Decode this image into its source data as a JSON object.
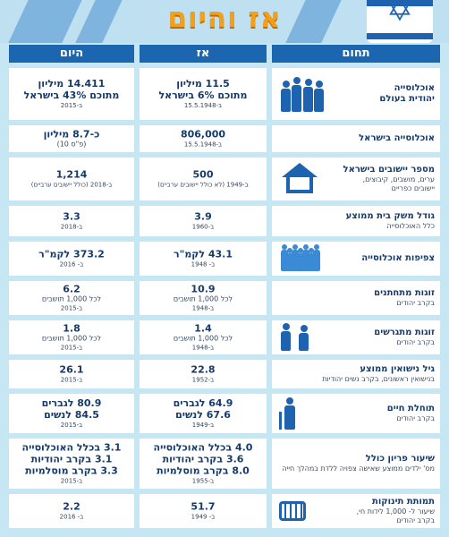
{
  "title": "אז והיום",
  "headers": {
    "field": "תחום",
    "then": "אז",
    "now": "היום"
  },
  "icons": {
    "flag": "star-of-david-icon",
    "population": "people-group-icon",
    "settlements": "house-icon",
    "density": "crowd-icon",
    "divorcing": "separated-couple-icon",
    "life": "elderly-cane-icon",
    "infant": "crib-icon"
  },
  "rows": [
    {
      "title": "אוכלוסייה",
      "title2": "יהודית בעולם",
      "sub": "",
      "then": [
        "11.5 מיליון",
        "מתוכם 6% בישראל"
      ],
      "then_year": "ב-15.5.1948",
      "now": [
        "14.411 מיליון",
        "מתוכם 43% בישראל"
      ],
      "now_year": "ב-2015"
    },
    {
      "title": "אוכלוסייה בישראל",
      "title2": "",
      "sub": "",
      "then": [
        "806,000"
      ],
      "then_year": "ב-15.5.1948",
      "now": [
        "כ-8.7 מיליון"
      ],
      "now_note": "(פ\"ס 10)",
      "now_year": ""
    },
    {
      "title": "מספר יישובים בישראל",
      "title2": "",
      "sub": "ערים, מושבים, קיבוצים, יישובים כפריים",
      "then": [
        "500"
      ],
      "then_year": "ב-1949 (לא כולל יישובים ערביים)",
      "now": [
        "1,214"
      ],
      "now_year": "ב-2018 (כולל יישובים ערביים)"
    },
    {
      "title": "גודל משק בית ממוצע",
      "title2": "",
      "sub": "כלל האוכלוסייה",
      "then": [
        "3.9"
      ],
      "then_year": "ב-1960",
      "now": [
        "3.3"
      ],
      "now_year": "ב-2018"
    },
    {
      "title": "צפיפות אוכלוסייה",
      "title2": "",
      "sub": "",
      "then": [
        "43.1 לקמ\"ר"
      ],
      "then_year": "ב- 1948",
      "now": [
        "373.2 לקמ\"ר"
      ],
      "now_year": "ב- 2016"
    },
    {
      "title": "זוגות מתחתנים",
      "title2": "",
      "sub": "בקרב יהודים",
      "then": [
        "10.9"
      ],
      "then_note": "לכל 1,000 תושבים",
      "then_year": "ב-1948",
      "now": [
        "6.2"
      ],
      "now_note": "לכל 1,000 תושבים",
      "now_year": "ב-2015"
    },
    {
      "title": "זוגות מתגרשים",
      "title2": "",
      "sub": "בקרב יהודים",
      "then": [
        "1.4"
      ],
      "then_note": "לכל 1,000 תושבים",
      "then_year": "ב-1948",
      "now": [
        "1.8"
      ],
      "now_note": "לכל 1,000 תושבים",
      "now_year": "ב-2015"
    },
    {
      "title": "גיל נישואין ממוצע",
      "title2": "",
      "sub": "בנישואין ראשונים, בקרב נשים יהודיות",
      "then": [
        "22.8"
      ],
      "then_year": "ב-1952",
      "now": [
        "26.1"
      ],
      "now_year": "ב-2015"
    },
    {
      "title": "תוחלת חיים",
      "title2": "",
      "sub": "בקרב יהודים",
      "then": [
        "64.9 לגברים",
        "67.6 לנשים"
      ],
      "then_year": "ב-1949",
      "now": [
        "80.9 לגברים",
        "84.5 לנשים"
      ],
      "now_year": "ב-2015"
    },
    {
      "title": "שיעור פריון כולל",
      "title2": "",
      "sub": "מס' ילדים ממוצע שאישה צפויה ללדת במהלך חייה",
      "then": [
        "4.0 בכלל האוכלוסייה",
        "3.6 בקרב יהודיות",
        "8.0 בקרב מוסלמיות"
      ],
      "then_year": "ב-1955",
      "now": [
        "3.1 בכלל האוכלוסייה",
        "3.1 בקרב יהודיות",
        "3.3 בקרב מוסלמיות"
      ],
      "now_year": "ב-2015"
    },
    {
      "title": "תמותת תינוקות",
      "title2": "",
      "sub": "שיעור ל- 1,000 לידות חי, בקרב יהודים",
      "then": [
        "51.7"
      ],
      "then_year": "ב- 1949",
      "now": [
        "2.2"
      ],
      "now_year": "ב- 2016"
    }
  ]
}
